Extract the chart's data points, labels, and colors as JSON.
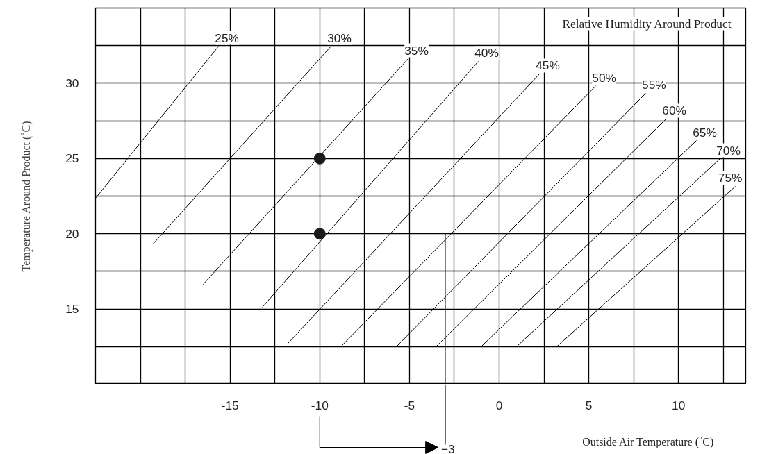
{
  "chart_data": {
    "type": "line",
    "xlabel": "Outside Air Temperature (˚C)",
    "ylabel": "Temperature Around Product (˚C)",
    "legend_title": "Relative Humidity Around Product",
    "annotations": [
      "−3"
    ],
    "xlim": [
      -22.5,
      13.75
    ],
    "ylim": [
      10,
      35
    ],
    "xticks": [
      {
        "value": -20,
        "label": null
      },
      {
        "value": -17.5,
        "label": null
      },
      -15,
      {
        "value": -12.5,
        "label": null
      },
      -10,
      {
        "value": -7.5,
        "label": null
      },
      -5,
      {
        "value": -2.5,
        "label": null
      },
      0,
      {
        "value": 2.5,
        "label": null
      },
      5,
      {
        "value": 7.5,
        "label": null
      },
      10,
      {
        "value": 12.5,
        "label": null
      }
    ],
    "yticks": [
      {
        "value": 12.5,
        "label": null
      },
      15,
      {
        "value": 17.5,
        "label": null
      },
      20,
      {
        "value": 22.5,
        "label": null
      },
      25,
      {
        "value": 27.5,
        "label": null
      },
      30,
      {
        "value": 32.5,
        "label": null
      }
    ],
    "grid": true,
    "line_style": "solid",
    "series": [
      {
        "name": "25%",
        "color": "#000000",
        "x": [
          -22.5,
          -15.64
        ],
        "values": [
          22.36,
          32.46
        ]
      },
      {
        "name": "30%",
        "color": "#000000",
        "x": [
          -19.29,
          -9.37
        ],
        "values": [
          19.32,
          32.46
        ]
      },
      {
        "name": "35%",
        "color": "#000000",
        "x": [
          -16.5,
          -5.07
        ],
        "values": [
          16.64,
          31.63
        ]
      },
      {
        "name": "40%",
        "color": "#000000",
        "x": [
          -13.2,
          -1.16
        ],
        "values": [
          15.12,
          31.45
        ]
      },
      {
        "name": "45%",
        "color": "#000000",
        "x": [
          -11.77,
          2.25
        ],
        "values": [
          12.72,
          30.62
        ]
      },
      {
        "name": "50%",
        "color": "#000000",
        "x": [
          -8.79,
          5.39
        ],
        "values": [
          12.54,
          29.83
        ]
      },
      {
        "name": "55%",
        "color": "#000000",
        "x": [
          -5.69,
          8.17
        ],
        "values": [
          12.54,
          29.33
        ]
      },
      {
        "name": "60%",
        "color": "#000000",
        "x": [
          -3.48,
          9.3
        ],
        "values": [
          12.54,
          27.62
        ]
      },
      {
        "name": "65%",
        "color": "#000000",
        "x": [
          -0.97,
          11.0
        ],
        "values": [
          12.54,
          26.19
        ]
      },
      {
        "name": "70%",
        "color": "#000000",
        "x": [
          1.01,
          12.32
        ],
        "values": [
          12.54,
          24.99
        ]
      },
      {
        "name": "75%",
        "color": "#000000",
        "x": [
          3.25,
          13.17
        ],
        "values": [
          12.54,
          23.15
        ]
      },
      {
        "type": "scatter",
        "marker": "circle",
        "color": "#1a1a1a",
        "x": [
          -10,
          -10
        ],
        "values": [
          25,
          20
        ]
      },
      {
        "type": "line",
        "color": "#000000",
        "x": [
          -3,
          -3
        ],
        "values": [
          20,
          10
        ]
      }
    ]
  }
}
